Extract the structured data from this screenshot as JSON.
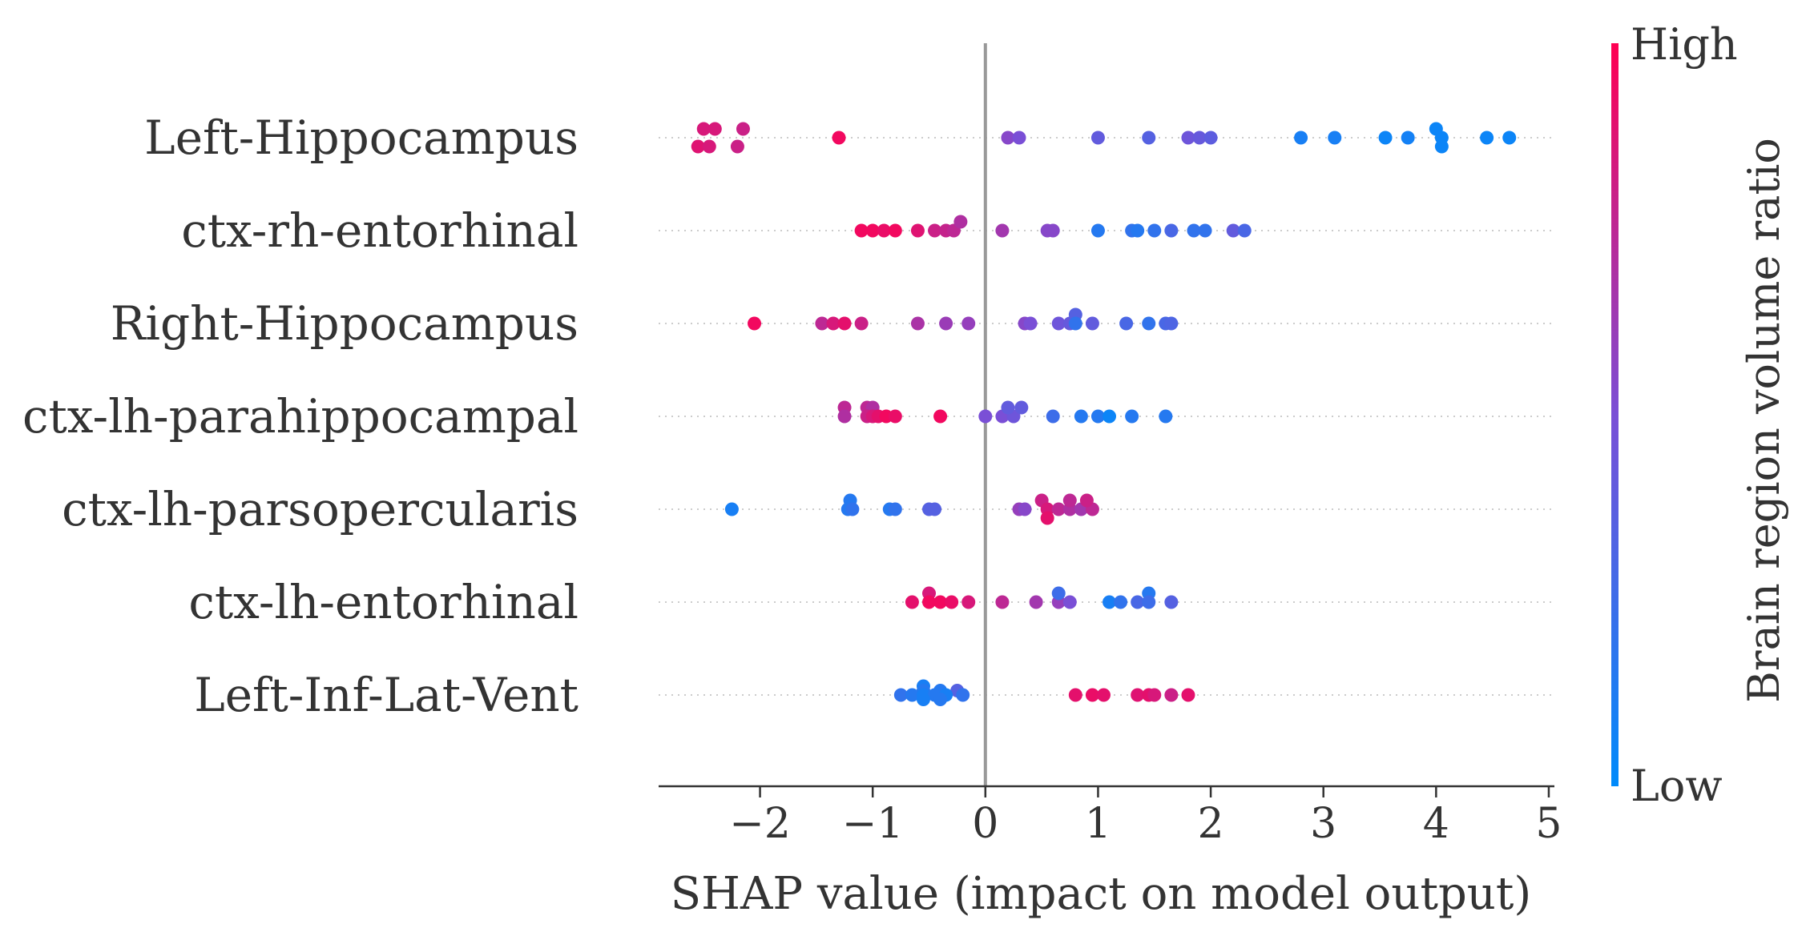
{
  "chart_data": {
    "type": "scatter",
    "subtype": "shap-beeswarm",
    "xlabel": "SHAP value (impact on model output)",
    "xlim": [
      -2.9,
      5.05
    ],
    "xticks": [
      -2,
      -1,
      0,
      1,
      2,
      3,
      4,
      5
    ],
    "xtick_labels": [
      "−2",
      "−1",
      "0",
      "1",
      "2",
      "3",
      "4",
      "5"
    ],
    "zero_line": 0,
    "colorbar": {
      "label": "Brain region volume ratio",
      "high_label": "High",
      "low_label": "Low",
      "high_color": "#ff0052",
      "low_color": "#008bfb"
    },
    "features": [
      {
        "name": "Left-Hippocampus",
        "points": [
          [
            -2.5,
            0.85,
            1
          ],
          [
            -2.4,
            0.85,
            1
          ],
          [
            -2.15,
            0.8,
            1
          ],
          [
            -2.55,
            0.88,
            -1
          ],
          [
            -2.45,
            0.85,
            -1
          ],
          [
            -2.2,
            0.8,
            -1
          ],
          [
            -1.3,
            0.95,
            0
          ],
          [
            0.2,
            0.55,
            0
          ],
          [
            0.3,
            0.5,
            0
          ],
          [
            1.0,
            0.4,
            0
          ],
          [
            1.45,
            0.35,
            0
          ],
          [
            1.8,
            0.45,
            0
          ],
          [
            1.9,
            0.42,
            0
          ],
          [
            2.0,
            0.38,
            0
          ],
          [
            2.8,
            0.1,
            0
          ],
          [
            3.1,
            0.1,
            0
          ],
          [
            3.55,
            0.05,
            0
          ],
          [
            3.75,
            0.08,
            0
          ],
          [
            4.0,
            0.05,
            1
          ],
          [
            4.05,
            0.05,
            0
          ],
          [
            4.05,
            0.05,
            -1
          ],
          [
            4.45,
            0.05,
            0
          ],
          [
            4.65,
            0.05,
            0
          ]
        ]
      },
      {
        "name": "ctx-rh-entorhinal",
        "points": [
          [
            -1.1,
            0.95,
            0
          ],
          [
            -1.0,
            0.95,
            0
          ],
          [
            -0.9,
            0.92,
            0
          ],
          [
            -0.8,
            0.95,
            0
          ],
          [
            -0.6,
            0.88,
            0
          ],
          [
            -0.45,
            0.8,
            0
          ],
          [
            -0.35,
            0.78,
            0
          ],
          [
            -0.28,
            0.75,
            0
          ],
          [
            -0.22,
            0.7,
            1
          ],
          [
            0.15,
            0.65,
            0
          ],
          [
            0.55,
            0.55,
            0
          ],
          [
            0.6,
            0.55,
            0
          ],
          [
            1.0,
            0.15,
            0
          ],
          [
            1.3,
            0.2,
            0
          ],
          [
            1.35,
            0.15,
            0
          ],
          [
            1.5,
            0.2,
            0
          ],
          [
            1.65,
            0.3,
            0
          ],
          [
            1.85,
            0.2,
            0
          ],
          [
            1.95,
            0.2,
            0
          ],
          [
            2.2,
            0.4,
            0
          ],
          [
            2.3,
            0.3,
            0
          ]
        ]
      },
      {
        "name": "Right-Hippocampus",
        "points": [
          [
            -2.05,
            0.95,
            0
          ],
          [
            -1.45,
            0.75,
            0
          ],
          [
            -1.35,
            0.85,
            0
          ],
          [
            -1.25,
            0.9,
            0
          ],
          [
            -1.1,
            0.8,
            0
          ],
          [
            -0.6,
            0.68,
            0
          ],
          [
            -0.35,
            0.62,
            0
          ],
          [
            -0.15,
            0.6,
            0
          ],
          [
            0.35,
            0.55,
            0
          ],
          [
            0.4,
            0.5,
            0
          ],
          [
            0.65,
            0.45,
            0
          ],
          [
            0.75,
            0.42,
            0
          ],
          [
            0.8,
            0.35,
            1
          ],
          [
            0.8,
            0.2,
            0
          ],
          [
            0.95,
            0.4,
            0
          ],
          [
            1.25,
            0.3,
            0
          ],
          [
            1.45,
            0.2,
            0
          ],
          [
            1.6,
            0.3,
            0
          ],
          [
            1.65,
            0.32,
            0
          ]
        ]
      },
      {
        "name": "ctx-lh-parahippocampal",
        "points": [
          [
            -1.25,
            0.75,
            1
          ],
          [
            -1.05,
            0.75,
            1
          ],
          [
            -1.0,
            0.7,
            1
          ],
          [
            -1.25,
            0.7,
            0
          ],
          [
            -1.05,
            0.8,
            0
          ],
          [
            -1.0,
            0.85,
            0
          ],
          [
            -0.95,
            0.9,
            0
          ],
          [
            -0.88,
            0.95,
            0
          ],
          [
            -0.8,
            0.92,
            0
          ],
          [
            -0.4,
            0.95,
            0
          ],
          [
            0.0,
            0.5,
            0
          ],
          [
            0.15,
            0.5,
            0
          ],
          [
            0.25,
            0.45,
            0
          ],
          [
            0.2,
            0.4,
            1
          ],
          [
            0.32,
            0.4,
            1
          ],
          [
            0.6,
            0.25,
            0
          ],
          [
            0.85,
            0.15,
            0
          ],
          [
            1.0,
            0.15,
            0
          ],
          [
            1.1,
            0.05,
            0
          ],
          [
            1.3,
            0.15,
            0
          ],
          [
            1.6,
            0.15,
            0
          ]
        ]
      },
      {
        "name": "ctx-lh-parsopercularis",
        "points": [
          [
            -2.25,
            0.1,
            0
          ],
          [
            -1.2,
            0.15,
            1
          ],
          [
            -1.22,
            0.15,
            0
          ],
          [
            -1.18,
            0.2,
            0
          ],
          [
            -0.85,
            0.15,
            0
          ],
          [
            -0.8,
            0.2,
            0
          ],
          [
            -0.5,
            0.35,
            0
          ],
          [
            -0.45,
            0.35,
            0
          ],
          [
            0.3,
            0.6,
            0
          ],
          [
            0.35,
            0.55,
            0
          ],
          [
            0.5,
            0.8,
            1
          ],
          [
            0.55,
            0.85,
            0
          ],
          [
            0.65,
            0.75,
            0
          ],
          [
            0.75,
            0.7,
            0
          ],
          [
            0.85,
            0.65,
            0
          ],
          [
            0.95,
            0.75,
            0
          ],
          [
            0.75,
            0.75,
            1
          ],
          [
            0.9,
            0.8,
            1
          ],
          [
            0.55,
            0.9,
            -1
          ]
        ]
      },
      {
        "name": "ctx-lh-entorhinal",
        "points": [
          [
            -0.5,
            0.85,
            1
          ],
          [
            -0.65,
            0.9,
            0
          ],
          [
            -0.5,
            0.95,
            0
          ],
          [
            -0.4,
            0.95,
            0
          ],
          [
            -0.3,
            0.92,
            0
          ],
          [
            -0.15,
            0.85,
            0
          ],
          [
            0.15,
            0.75,
            0
          ],
          [
            0.45,
            0.65,
            0
          ],
          [
            0.65,
            0.6,
            0
          ],
          [
            0.75,
            0.5,
            0
          ],
          [
            0.65,
            0.25,
            1
          ],
          [
            1.45,
            0.15,
            1
          ],
          [
            1.1,
            0.1,
            0
          ],
          [
            1.2,
            0.2,
            0
          ],
          [
            1.35,
            0.3,
            0
          ],
          [
            1.45,
            0.25,
            0
          ],
          [
            1.65,
            0.35,
            0
          ]
        ]
      },
      {
        "name": "Left-Inf-Lat-Vent",
        "points": [
          [
            -0.55,
            0.1,
            1
          ],
          [
            -0.55,
            0.15,
            0.5
          ],
          [
            -0.4,
            0.15,
            0.5
          ],
          [
            -0.25,
            0.35,
            0.5
          ],
          [
            -0.75,
            0.2,
            0
          ],
          [
            -0.65,
            0.15,
            0
          ],
          [
            -0.55,
            0.1,
            0
          ],
          [
            -0.45,
            0.15,
            0
          ],
          [
            -0.35,
            0.1,
            0
          ],
          [
            -0.2,
            0.2,
            0
          ],
          [
            -0.55,
            0.1,
            -0.5
          ],
          [
            -0.4,
            0.15,
            -0.5
          ],
          [
            0.8,
            0.9,
            0
          ],
          [
            0.95,
            0.92,
            0
          ],
          [
            1.05,
            0.9,
            0
          ],
          [
            1.35,
            0.88,
            0
          ],
          [
            1.45,
            0.9,
            0
          ],
          [
            1.5,
            0.85,
            0
          ],
          [
            1.65,
            0.8,
            0
          ],
          [
            1.8,
            0.9,
            0
          ]
        ]
      }
    ]
  }
}
